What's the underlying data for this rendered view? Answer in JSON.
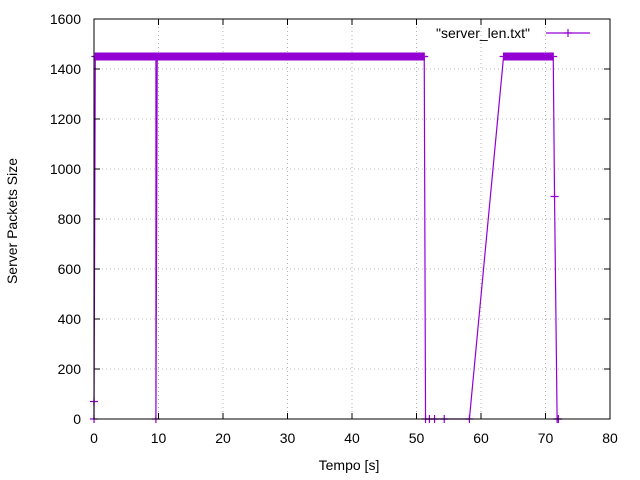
{
  "chart_data": {
    "type": "line",
    "title": "",
    "xlabel": "Tempo [s]",
    "ylabel": "Server Packets Size",
    "xlim": [
      0,
      80
    ],
    "ylim": [
      0,
      1600
    ],
    "xticks": [
      "0",
      "10",
      "20",
      "30",
      "40",
      "50",
      "60",
      "70",
      "80"
    ],
    "yticks": [
      "0",
      "200",
      "400",
      "600",
      "800",
      "1000",
      "1200",
      "1400",
      "1600"
    ],
    "grid": true,
    "legend_position": "top-right",
    "series": [
      {
        "name": "\"server_len.txt\"",
        "color": "#9400d3",
        "marker": "plus",
        "x": [
          0,
          0,
          0.2,
          9.6,
          9.6,
          9.8,
          51,
          51.2,
          51.4,
          52,
          52.8,
          54.3,
          58.2,
          63.5,
          71.2,
          71.4,
          71.8,
          72
        ],
        "y": [
          70,
          0,
          1450,
          1450,
          0,
          1450,
          1450,
          1450,
          0,
          0,
          0,
          0,
          0,
          1450,
          1450,
          890,
          0,
          0
        ]
      }
    ]
  }
}
